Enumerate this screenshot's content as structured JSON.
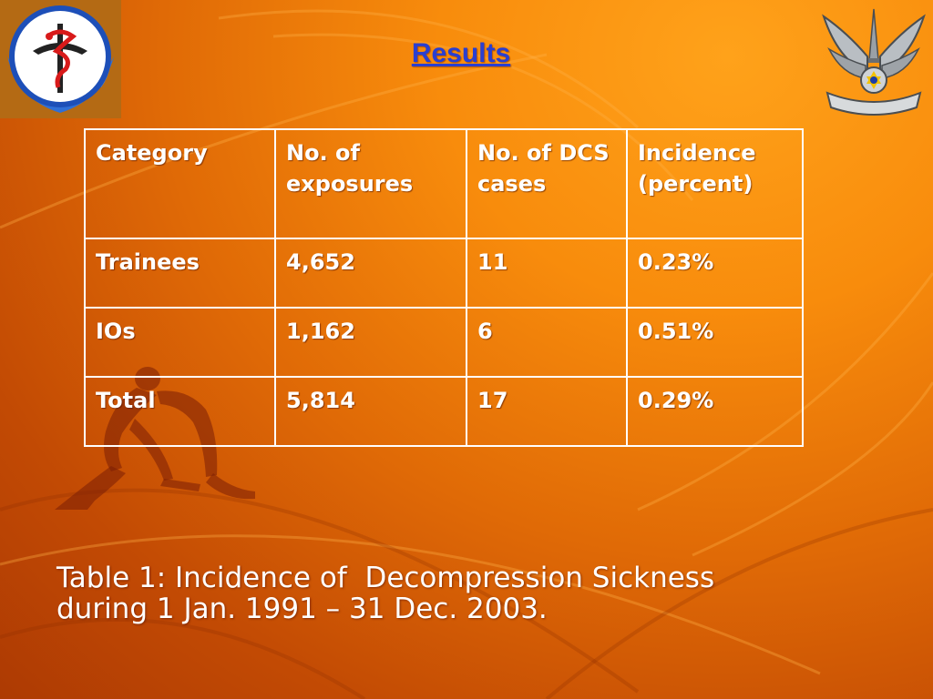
{
  "slide": {
    "title": "Results",
    "colors": {
      "title": "#2a3fd0",
      "text": "#ffffff",
      "background": "#e06a06"
    },
    "logos": {
      "left": "medical-corps-emblem-icon",
      "right": "air-force-emblem-icon"
    },
    "decoration": "runner-silhouette-icon"
  },
  "table": {
    "headers": [
      "Category",
      "No. of exposures",
      "No. of DCS cases",
      "Incidence (percent)"
    ],
    "rows": [
      [
        "Trainees",
        "4,652",
        "11",
        "0.23%"
      ],
      [
        "IOs",
        "1,162",
        "6",
        "0.51%"
      ],
      [
        "Total",
        "5,814",
        "17",
        "0.29%"
      ]
    ]
  },
  "caption": {
    "line1": "Table 1: Incidence of  Decompression Sickness",
    "line2": "during 1 Jan. 1991 – 31 Dec. 2003."
  }
}
